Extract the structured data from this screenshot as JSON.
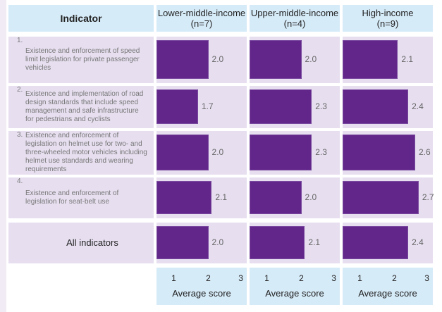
{
  "chart_data": {
    "type": "bar",
    "orientation": "horizontal",
    "header": "Indicator",
    "groups": [
      {
        "name": "Lower-middle-income",
        "n": "(n=7)"
      },
      {
        "name": "Upper-middle-income",
        "n": "(n=4)"
      },
      {
        "name": "High-income",
        "n": "(n=9)"
      }
    ],
    "categories": [
      {
        "num": "1.",
        "label": "Existence and enforcement of speed limit legislation for private passenger vehicles"
      },
      {
        "num": "2.",
        "label": "Existence and implementation of road design standards that include speed management and safe infrastructure for pedestrians and cyclists"
      },
      {
        "num": "3.",
        "label": "Existence and enforcement of legislation on helmet use for two- and three-wheeled motor vehicles including helmet use standards and wearing requirements"
      },
      {
        "num": "4.",
        "label": "Existence and enforcement of legislation for seat-belt use"
      },
      {
        "num": "",
        "label": "All indicators"
      }
    ],
    "series": [
      {
        "name": "Lower-middle-income",
        "values": [
          2.0,
          1.7,
          2.0,
          2.1,
          2.0
        ],
        "labels": [
          "2.0",
          "1.7",
          "2.0",
          "2.1",
          "2.0"
        ]
      },
      {
        "name": "Upper-middle-income",
        "values": [
          2.0,
          2.3,
          2.3,
          2.0,
          2.1
        ],
        "labels": [
          "2.0",
          "2.3",
          "2.3",
          "2.0",
          "2.1"
        ]
      },
      {
        "name": "High-income",
        "values": [
          2.1,
          2.4,
          2.6,
          2.7,
          2.4
        ],
        "labels": [
          "2.1",
          "2.4",
          "2.6",
          "2.7",
          "2.4"
        ]
      }
    ],
    "xticks": [
      "1",
      "2",
      "3"
    ],
    "xlim": [
      0.5,
      3.05
    ],
    "xlabel": "Average score",
    "bar_color": "#62268a",
    "panel_color": "#e7dff0",
    "header_color": "#d6ebf8"
  }
}
